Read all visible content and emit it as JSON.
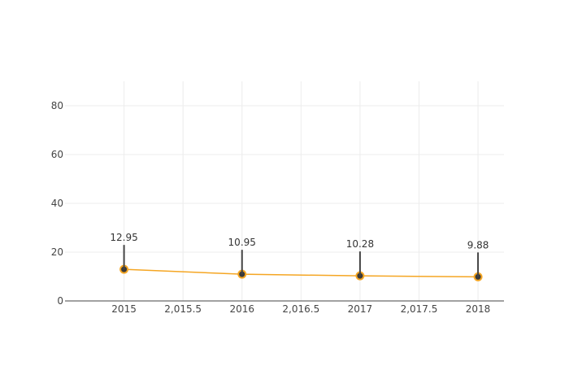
{
  "chart_data": {
    "type": "line",
    "title": "",
    "xlabel": "",
    "ylabel": "",
    "x": [
      2015,
      2016,
      2017,
      2018
    ],
    "series": [
      {
        "values": [
          12.95,
          10.95,
          10.28,
          9.88
        ],
        "color": "#f5a623"
      }
    ],
    "data_labels": [
      "12.95",
      "10.95",
      "10.28",
      "9.88"
    ],
    "xlim": [
      2014.5,
      2018.22
    ],
    "ylim": [
      0,
      90
    ],
    "x_ticks": [
      2015,
      2015.5,
      2016,
      2016.5,
      2017,
      2017.5,
      2018
    ],
    "x_tick_labels": [
      "2015",
      "2,015.5",
      "2016",
      "2,016.5",
      "2017",
      "2,017.5",
      "2018"
    ],
    "y_ticks": [
      0,
      20,
      40,
      60,
      80
    ],
    "y_tick_labels": [
      "0",
      "20",
      "40",
      "60",
      "80"
    ],
    "grid": true,
    "legend": "none",
    "marker_fill": "#3a3a3a",
    "marker_edge": "#f5a623",
    "annotation_line_color": "#444444"
  }
}
